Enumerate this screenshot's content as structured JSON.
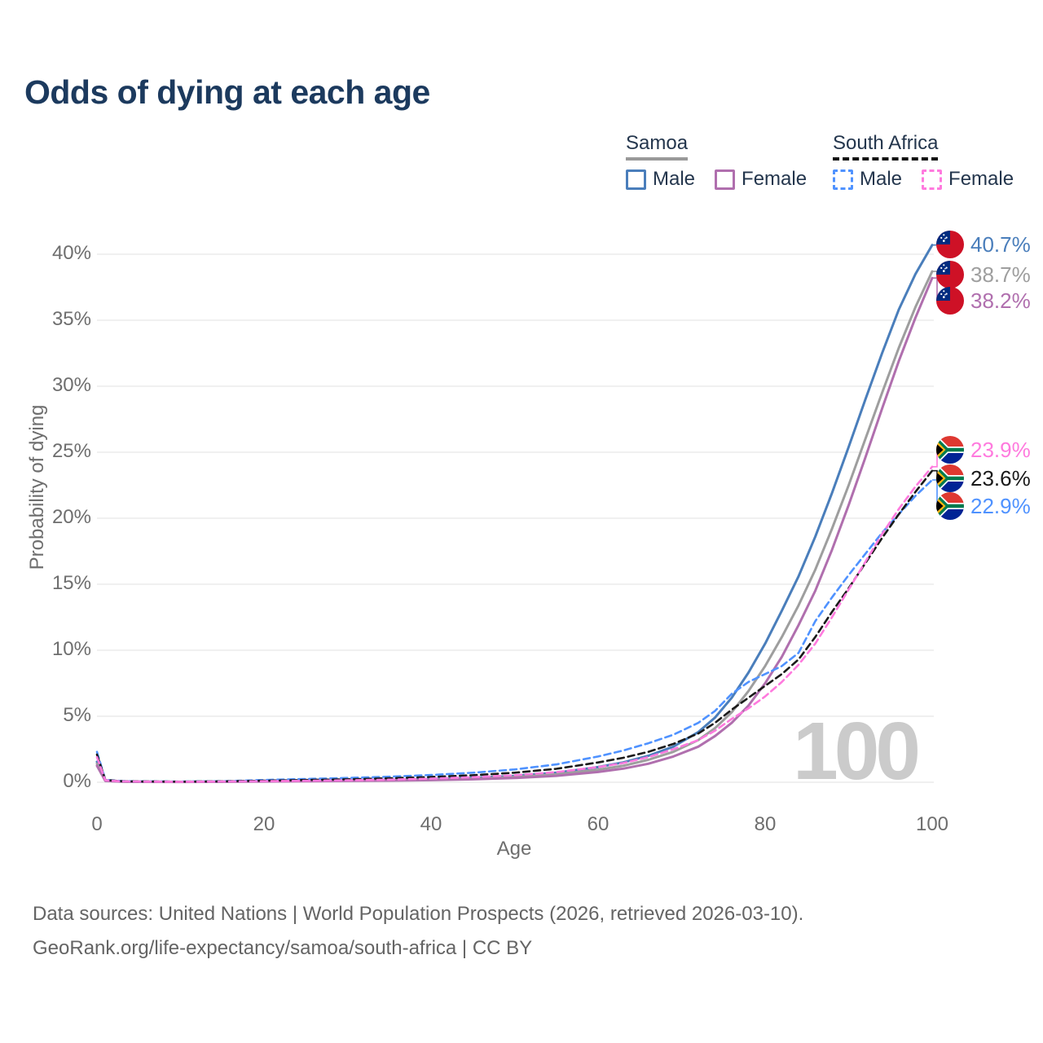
{
  "title": "Odds of dying at each age",
  "legend": {
    "samoa": {
      "label": "Samoa",
      "male": "Male",
      "female": "Female"
    },
    "south_africa": {
      "label": "South Africa",
      "male": "Male",
      "female": "Female"
    }
  },
  "axes": {
    "x_label": "Age",
    "y_label": "Probability of dying"
  },
  "watermark": "100",
  "footer": {
    "line1": "Data sources: United Nations | World Population Prospects (2026, retrieved 2026-03-10).",
    "line2": "GeoRank.org/life-expectancy/samoa/south-africa | CC BY"
  },
  "colors": {
    "title_text": "#1c3a5e",
    "legend_text": "#24364d",
    "axis_text": "#6e6e6e",
    "grid": "#ececec",
    "watermark": "#cbcbcb",
    "footer_text": "#646464",
    "samoa_underline": "#999999",
    "south_africa_underline": "#141414",
    "samoa_male": "#4a7ebb",
    "samoa_both": "#9e9e9e",
    "samoa_female": "#b06fae",
    "south_africa_male": "#4f92ff",
    "south_africa_both": "#1a1a1a",
    "south_africa_female": "#ff7ade",
    "flag_samoa_red": "#CE1126",
    "flag_samoa_blue": "#002B7F",
    "flag_sa_red": "#DE3831",
    "flag_sa_blue": "#002395",
    "flag_sa_green": "#007A4D",
    "flag_sa_gold": "#FFB612"
  },
  "chart_data": {
    "type": "line",
    "title": "Odds of dying at each age",
    "xlabel": "Age",
    "ylabel": "Probability of dying",
    "xlim": [
      0,
      100
    ],
    "ylim": [
      0,
      41
    ],
    "grid": "horizontal",
    "legend_position": "top-right",
    "xticks": [
      0,
      20,
      40,
      60,
      80,
      100
    ],
    "xtick_labels": [
      "0",
      "20",
      "40",
      "60",
      "80",
      "100"
    ],
    "yticks": [
      0,
      5,
      10,
      15,
      20,
      25,
      30,
      35,
      40
    ],
    "ytick_labels": [
      "0%",
      "5%",
      "10%",
      "15%",
      "20%",
      "25%",
      "30%",
      "35%",
      "40%"
    ],
    "x": [
      0,
      1,
      3,
      5,
      10,
      15,
      20,
      25,
      30,
      35,
      40,
      45,
      50,
      55,
      60,
      63,
      66,
      69,
      72,
      74,
      76,
      78,
      80,
      82,
      84,
      86,
      88,
      90,
      92,
      94,
      96,
      98,
      100
    ],
    "series": [
      {
        "key": "samoa-male",
        "name": "Samoa — Male",
        "flag": "samoa",
        "style": "solid",
        "color": "#4a7ebb",
        "label_color": "#4a7ebb",
        "end_label": "40.7%",
        "label_row": 0,
        "values": [
          1.55,
          0.12,
          0.06,
          0.04,
          0.03,
          0.05,
          0.09,
          0.12,
          0.15,
          0.19,
          0.25,
          0.34,
          0.48,
          0.72,
          1.15,
          1.5,
          2.0,
          2.7,
          3.8,
          4.9,
          6.4,
          8.3,
          10.5,
          13.0,
          15.6,
          18.6,
          21.9,
          25.4,
          29.0,
          32.5,
          35.8,
          38.5,
          40.7
        ]
      },
      {
        "key": "samoa-both",
        "name": "Samoa — Both sexes",
        "flag": "samoa",
        "style": "solid",
        "color": "#9e9e9e",
        "label_color": "#9e9e9e",
        "end_label": "38.7%",
        "label_row": 1,
        "values": [
          1.4,
          0.11,
          0.05,
          0.035,
          0.028,
          0.042,
          0.07,
          0.1,
          0.125,
          0.155,
          0.2,
          0.28,
          0.4,
          0.6,
          0.95,
          1.25,
          1.7,
          2.3,
          3.2,
          4.1,
          5.3,
          6.9,
          8.8,
          11.0,
          13.4,
          16.1,
          19.2,
          22.5,
          26.0,
          29.5,
          32.9,
          36.0,
          38.7
        ]
      },
      {
        "key": "samoa-female",
        "name": "Samoa — Female",
        "flag": "samoa",
        "style": "solid",
        "color": "#b06fae",
        "label_color": "#b06fae",
        "end_label": "38.2%",
        "label_row": 2,
        "values": [
          1.25,
          0.1,
          0.045,
          0.03,
          0.025,
          0.038,
          0.055,
          0.075,
          0.1,
          0.125,
          0.16,
          0.22,
          0.32,
          0.49,
          0.78,
          1.03,
          1.4,
          1.95,
          2.7,
          3.5,
          4.5,
          5.8,
          7.5,
          9.5,
          11.9,
          14.5,
          17.6,
          21.0,
          24.6,
          28.3,
          31.9,
          35.2,
          38.2
        ]
      },
      {
        "key": "south-africa-male",
        "name": "South Africa — Male",
        "flag": "south-africa",
        "style": "dashed",
        "color": "#4f92ff",
        "label_color": "#4f92ff",
        "end_label": "22.9%",
        "label_row": 5,
        "values": [
          2.3,
          0.18,
          0.09,
          0.065,
          0.05,
          0.08,
          0.17,
          0.25,
          0.33,
          0.42,
          0.55,
          0.72,
          0.97,
          1.35,
          1.95,
          2.4,
          2.95,
          3.6,
          4.5,
          5.4,
          6.7,
          7.6,
          8.2,
          8.8,
          9.8,
          12.2,
          14.0,
          15.7,
          17.3,
          18.9,
          20.3,
          21.7,
          22.9
        ]
      },
      {
        "key": "south-africa-both",
        "name": "South Africa — Both sexes",
        "flag": "south-africa",
        "style": "dashed",
        "color": "#1a1a1a",
        "label_color": "#1a1a1a",
        "end_label": "23.6%",
        "label_row": 4,
        "values": [
          2.1,
          0.165,
          0.08,
          0.06,
          0.045,
          0.065,
          0.12,
          0.17,
          0.225,
          0.3,
          0.4,
          0.53,
          0.72,
          1.02,
          1.5,
          1.85,
          2.3,
          2.9,
          3.7,
          4.5,
          5.5,
          6.4,
          7.3,
          8.2,
          9.3,
          11.0,
          12.9,
          14.7,
          16.6,
          18.5,
          20.3,
          22.0,
          23.6
        ]
      },
      {
        "key": "south-africa-female",
        "name": "South Africa — Female",
        "flag": "south-africa",
        "style": "dashed",
        "color": "#ff7ade",
        "label_color": "#ff7ade",
        "end_label": "23.9%",
        "label_row": 3,
        "values": [
          1.9,
          0.15,
          0.07,
          0.055,
          0.04,
          0.055,
          0.08,
          0.11,
          0.15,
          0.2,
          0.27,
          0.38,
          0.53,
          0.77,
          1.15,
          1.45,
          1.9,
          2.5,
          3.2,
          3.9,
          4.8,
          5.6,
          6.5,
          7.6,
          8.9,
          10.5,
          12.5,
          14.6,
          16.7,
          18.8,
          20.7,
          22.4,
          23.9
        ]
      }
    ]
  }
}
